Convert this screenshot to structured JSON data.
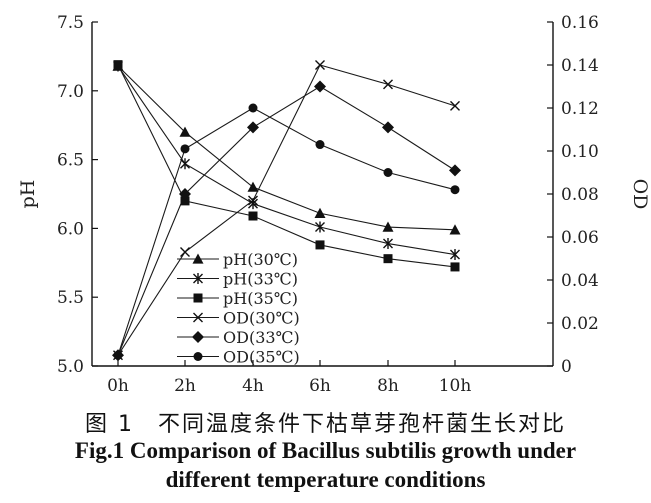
{
  "chart_data": {
    "type": "line",
    "categories": [
      "0h",
      "2h",
      "4h",
      "6h",
      "8h",
      "10h"
    ],
    "y_left": {
      "label": "pH",
      "range": [
        5.0,
        7.5
      ],
      "ticks": [
        5.0,
        5.5,
        6.0,
        6.5,
        7.0,
        7.5
      ],
      "tick_labels": [
        "5.0",
        "5.5",
        "6.0",
        "6.5",
        "7.0",
        "7.5"
      ]
    },
    "y_right": {
      "label": "OD",
      "range": [
        0,
        0.16
      ],
      "ticks": [
        0,
        0.02,
        0.04,
        0.06,
        0.08,
        0.1,
        0.12,
        0.14,
        0.16
      ],
      "tick_labels": [
        "0",
        "0.02",
        "0.04",
        "0.06",
        "0.08",
        "0.10",
        "0.12",
        "0.14",
        "0.16"
      ]
    },
    "grid": false,
    "legend_position": "lower-center",
    "series": [
      {
        "name": "pH(30℃)",
        "axis": "left",
        "marker": "triangle",
        "values": [
          7.18,
          6.7,
          6.3,
          6.11,
          6.01,
          5.99
        ]
      },
      {
        "name": "pH(33℃)",
        "axis": "left",
        "marker": "asterisk",
        "values": [
          7.18,
          6.47,
          6.18,
          6.01,
          5.89,
          5.81
        ]
      },
      {
        "name": "pH(35℃)",
        "axis": "left",
        "marker": "square",
        "values": [
          7.19,
          6.2,
          6.09,
          5.88,
          5.78,
          5.72
        ]
      },
      {
        "name": "OD(30℃)",
        "axis": "right",
        "marker": "x",
        "values": [
          0.005,
          0.053,
          0.077,
          0.14,
          0.131,
          0.121
        ]
      },
      {
        "name": "OD(33℃)",
        "axis": "right",
        "marker": "diamond",
        "values": [
          0.005,
          0.08,
          0.111,
          0.13,
          0.111,
          0.091
        ]
      },
      {
        "name": "OD(35℃)",
        "axis": "right",
        "marker": "circle",
        "values": [
          0.005,
          0.101,
          0.12,
          0.103,
          0.09,
          0.082
        ]
      }
    ]
  },
  "caption": {
    "chinese": "图 1　不同温度条件下枯草芽孢杆菌生长对比",
    "english_line1": "Fig.1 Comparison of Bacillus subtilis growth under",
    "english_line2": "different temperature conditions"
  }
}
